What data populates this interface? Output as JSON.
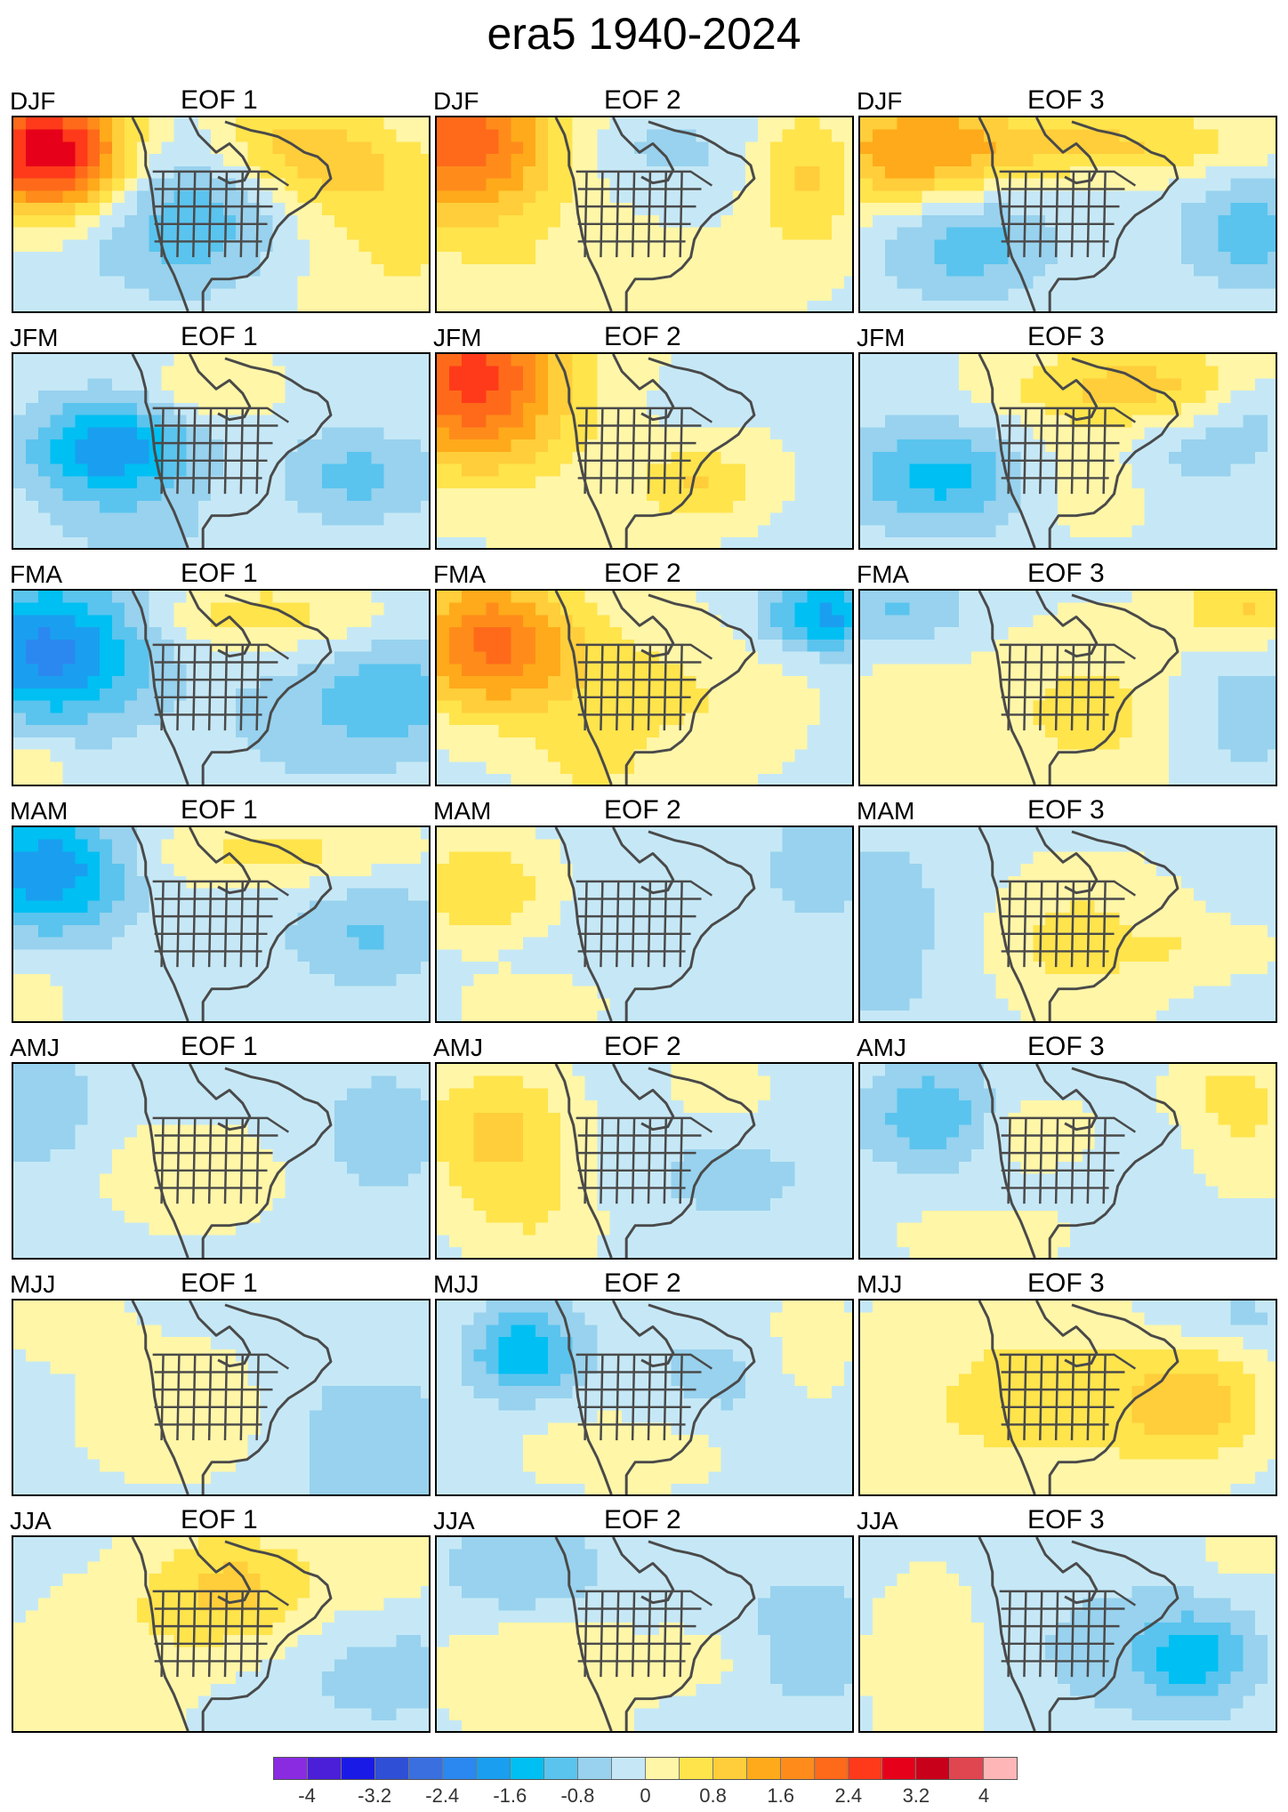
{
  "title": "era5 1940-2024",
  "chart_data": {
    "type": "heatmap",
    "title": "era5 1940-2024",
    "layout": "7 rows (seasons) x 3 columns (EOF modes) of contoured maps over North America",
    "seasons": [
      "DJF",
      "JFM",
      "FMA",
      "MAM",
      "AMJ",
      "MJJ",
      "JJA"
    ],
    "eofs": [
      "EOF 1",
      "EOF 2",
      "EOF 3"
    ],
    "colorbar": {
      "ticks": [
        "-4",
        "-3.2",
        "-2.4",
        "-1.6",
        "-0.8",
        "0",
        "0.8",
        "1.6",
        "2.4",
        "3.2",
        "4"
      ],
      "range": [
        -4,
        4
      ],
      "interval": 0.4,
      "colors": [
        "#8a2be2",
        "#4b1fd8",
        "#1a1ae6",
        "#2f4fd6",
        "#3a6fe0",
        "#2b88f0",
        "#1a9ff0",
        "#00bff2",
        "#5ac4ee",
        "#98d2ee",
        "#c6e8f6",
        "#fff6a8",
        "#ffe44c",
        "#ffce3a",
        "#ffaa1a",
        "#ff8c1a",
        "#ff6a1a",
        "#ff3a1a",
        "#e6001a",
        "#c8001a",
        "#e0464f",
        "#ffb6b6"
      ]
    },
    "panels": [
      {
        "season": "DJF",
        "eof": "EOF 1",
        "min": -1.6,
        "max": 3.6,
        "dominant": "positive anomaly over the Gulf of Alaska"
      },
      {
        "season": "DJF",
        "eof": "EOF 2",
        "min": -0.8,
        "max": 2.4,
        "dominant": "positive anomaly over the northeast Pacific"
      },
      {
        "season": "DJF",
        "eof": "EOF 3",
        "min": -1.2,
        "max": 1.6,
        "dominant": "positive anomaly across the northern domain"
      },
      {
        "season": "JFM",
        "eof": "EOF 1",
        "min": -2.0,
        "max": 1.2,
        "dominant": "negative anomaly west of the United States"
      },
      {
        "season": "JFM",
        "eof": "EOF 2",
        "min": -0.8,
        "max": 2.8,
        "dominant": "positive anomaly over the Gulf of Alaska"
      },
      {
        "season": "JFM",
        "eof": "EOF 3",
        "min": -1.6,
        "max": 1.2,
        "dominant": "positive anomaly over Canada"
      },
      {
        "season": "FMA",
        "eof": "EOF 1",
        "min": -2.4,
        "max": 1.2,
        "dominant": "negative anomaly over the northeast Pacific"
      },
      {
        "season": "FMA",
        "eof": "EOF 2",
        "min": -1.6,
        "max": 2.4,
        "dominant": "positive anomaly over the northeast Pacific"
      },
      {
        "season": "FMA",
        "eof": "EOF 3",
        "min": -1.2,
        "max": 1.2,
        "dominant": "positive anomaly over the central United States"
      },
      {
        "season": "MAM",
        "eof": "EOF 1",
        "min": -2.0,
        "max": 1.2,
        "dominant": "negative anomaly over the Gulf of Alaska"
      },
      {
        "season": "MAM",
        "eof": "EOF 2",
        "min": -0.8,
        "max": 1.2,
        "dominant": "positive anomaly over the northeast Pacific"
      },
      {
        "season": "MAM",
        "eof": "EOF 3",
        "min": -0.8,
        "max": 0.8,
        "dominant": "positive anomaly over the central United States"
      },
      {
        "season": "AMJ",
        "eof": "EOF 1",
        "min": -0.8,
        "max": 0.8,
        "dominant": "weak mixed anomalies"
      },
      {
        "season": "AMJ",
        "eof": "EOF 2",
        "min": -0.8,
        "max": 1.2,
        "dominant": "positive anomaly over the northeast Pacific"
      },
      {
        "season": "AMJ",
        "eof": "EOF 3",
        "min": -1.2,
        "max": 0.8,
        "dominant": "negative anomaly over the north Pacific"
      },
      {
        "season": "MJJ",
        "eof": "EOF 1",
        "min": -0.8,
        "max": 0.8,
        "dominant": "weak positive over the United States"
      },
      {
        "season": "MJJ",
        "eof": "EOF 2",
        "min": -1.6,
        "max": 0.8,
        "dominant": "negative anomaly over the north Pacific"
      },
      {
        "season": "MJJ",
        "eof": "EOF 3",
        "min": -0.8,
        "max": 1.2,
        "dominant": "positive anomaly over the western Atlantic"
      },
      {
        "season": "JJA",
        "eof": "EOF 1",
        "min": -0.8,
        "max": 1.2,
        "dominant": "positive anomaly over central Canada"
      },
      {
        "season": "JJA",
        "eof": "EOF 2",
        "min": -0.8,
        "max": 0.8,
        "dominant": "weak mixed anomalies"
      },
      {
        "season": "JJA",
        "eof": "EOF 3",
        "min": -1.2,
        "max": 0.8,
        "dominant": "negative anomaly over the western Atlantic"
      }
    ]
  }
}
